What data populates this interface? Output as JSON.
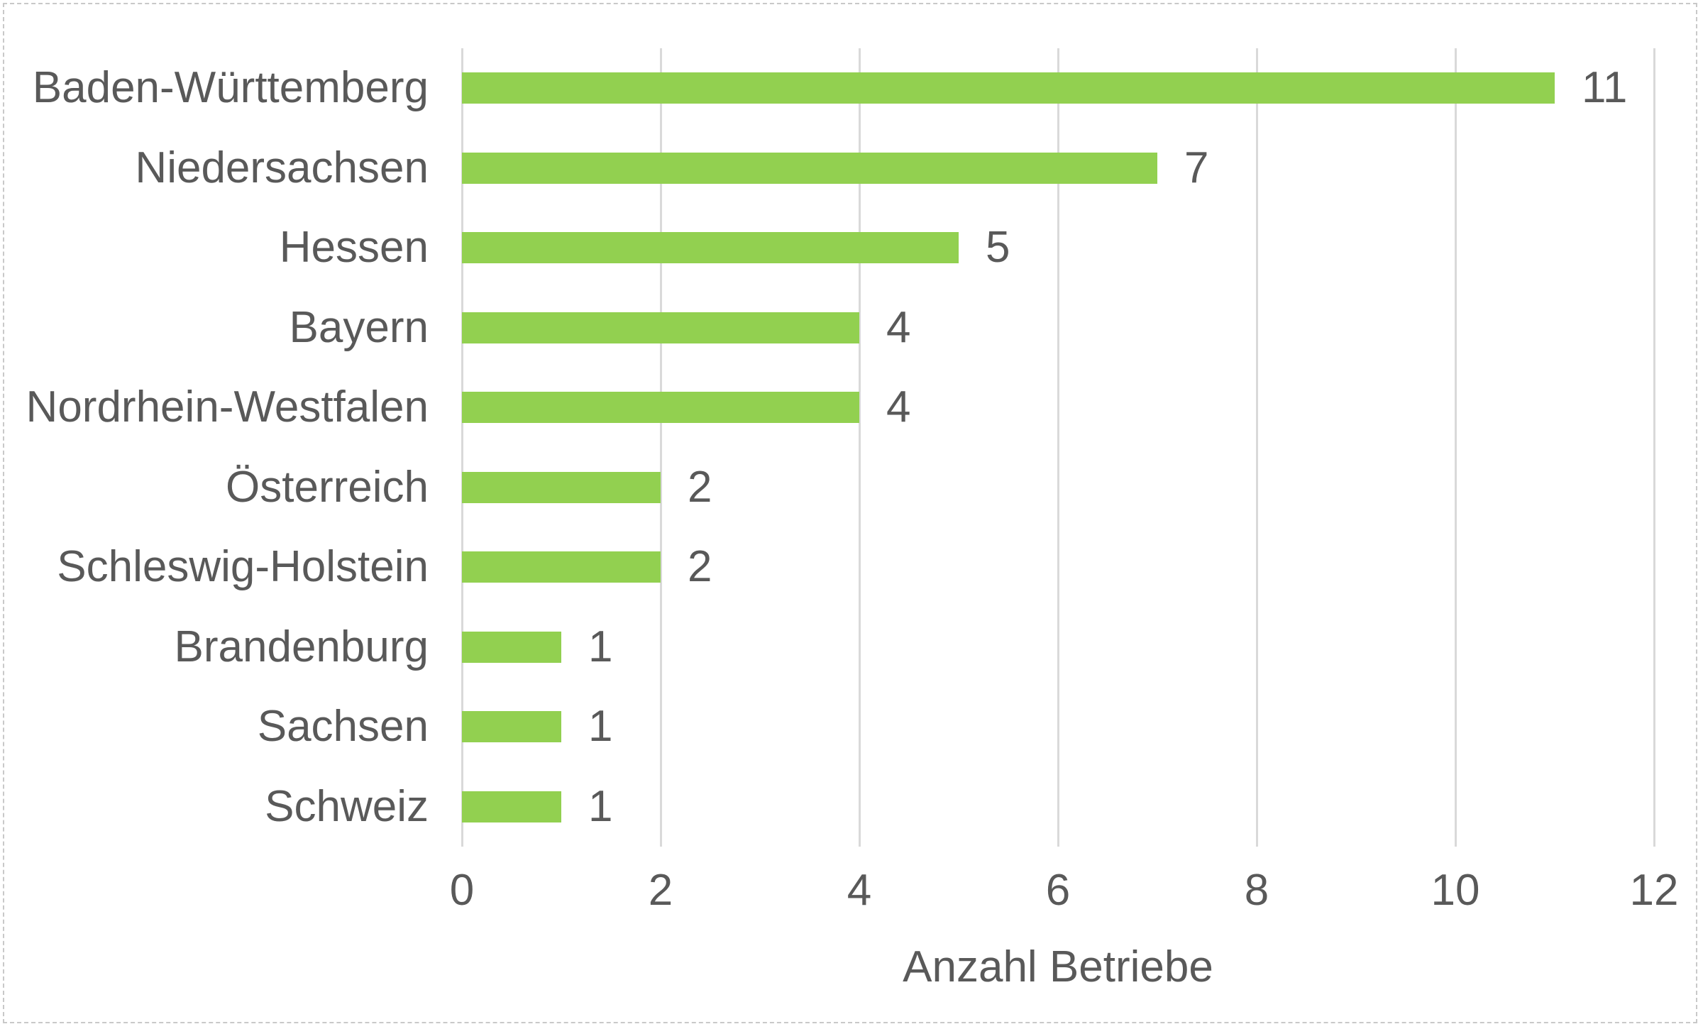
{
  "chart_data": {
    "type": "bar",
    "orientation": "horizontal",
    "title": "",
    "xlabel": "Anzahl Betriebe",
    "ylabel": "",
    "categories": [
      "Baden-Württemberg",
      "Niedersachsen",
      "Hessen",
      "Bayern",
      "Nordrhein-Westfalen",
      "Österreich",
      "Schleswig-Holstein",
      "Brandenburg",
      "Sachsen",
      "Schweiz"
    ],
    "values": [
      11,
      7,
      5,
      4,
      4,
      2,
      2,
      1,
      1,
      1
    ],
    "data_labels": [
      11,
      7,
      5,
      4,
      4,
      2,
      2,
      1,
      1,
      1
    ],
    "xlim": [
      0,
      12
    ],
    "xticks": [
      0,
      2,
      4,
      6,
      8,
      10,
      12
    ],
    "grid": "vertical major gridlines on",
    "legend": "none"
  },
  "style": {
    "bar_color": "#92D050",
    "text_color": "#595959",
    "gridline_color": "#D9D9D9",
    "axis_line_color": "#D9D9D9",
    "border_color": "#C9C9C9",
    "background": "#FFFFFF"
  }
}
